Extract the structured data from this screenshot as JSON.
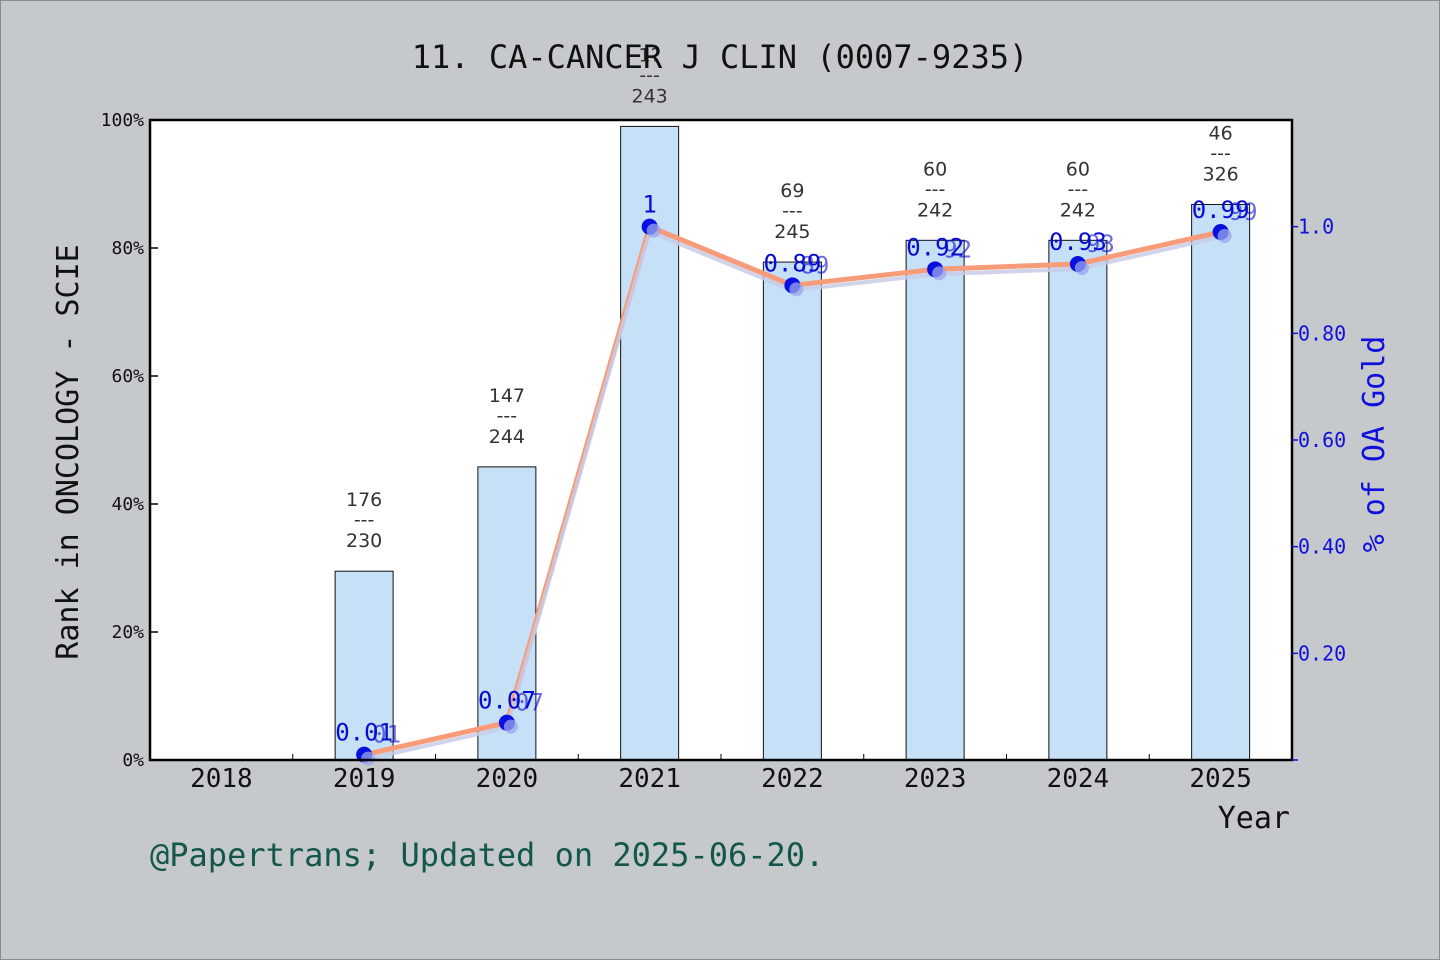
{
  "chart_data": {
    "type": "bar",
    "title": "11. CA-CANCER J CLIN (0007-9235)",
    "xlabel": "Year",
    "ylabel": "Rank in ONCOLOGY - SCIE",
    "y2label": "% of OA Gold",
    "categories": [
      "2018",
      "2019",
      "2020",
      "2021",
      "2022",
      "2023",
      "2024",
      "2025"
    ],
    "ylim": [
      0,
      100
    ],
    "y_ticks": [
      "0%",
      "20%",
      "40%",
      "60%",
      "80%",
      "100%"
    ],
    "y2lim": [
      0,
      1.2
    ],
    "y2_ticks": [
      "0.20",
      "0.40",
      "0.60",
      "0.80",
      "1.0"
    ],
    "grid": false,
    "series": [
      {
        "kind": "bar",
        "values": [
          null,
          29.5,
          45.8,
          99.0,
          77.8,
          81.2,
          81.2,
          86.8
        ],
        "annotations": [
          null,
          {
            "top": "176",
            "sep": "---",
            "bottom": "230"
          },
          {
            "top": "147",
            "sep": "---",
            "bottom": "244"
          },
          {
            "top": "1?",
            "sep": "---",
            "bottom": "243"
          },
          {
            "top": "69",
            "sep": "---",
            "bottom": "245"
          },
          {
            "top": "60",
            "sep": "---",
            "bottom": "242"
          },
          {
            "top": "60",
            "sep": "---",
            "bottom": "242"
          },
          {
            "top": "46",
            "sep": "---",
            "bottom": "326"
          }
        ]
      },
      {
        "kind": "line",
        "values": [
          null,
          0.01,
          0.07,
          1.0,
          0.89,
          0.92,
          0.93,
          0.99
        ],
        "labels": [
          null,
          "0.01",
          "0.07",
          "1",
          "0.89",
          "0.92",
          "0.93",
          "0.99"
        ]
      }
    ],
    "colors": {
      "bar_fill": "#c5e0f7",
      "bar_stroke": "#111111",
      "line_main": "#f79b78",
      "line_shadow": "#c8cbe6",
      "point": "#0a10e0",
      "right_axis": "#1010dd"
    }
  },
  "footer": "@Papertrans; Updated on 2025-06-20."
}
